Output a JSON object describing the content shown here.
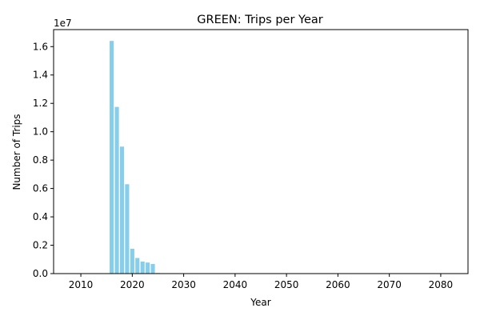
{
  "chart_data": {
    "type": "bar",
    "title": "GREEN: Trips per Year",
    "xlabel": "Year",
    "ylabel": "Number of Trips",
    "y_offset_label": "1e7",
    "bar_color": "#87ceeb",
    "x": [
      2016,
      2017,
      2018,
      2019,
      2020,
      2021,
      2022,
      2023,
      2024,
      2025
    ],
    "values": [
      16400000,
      11750000,
      8950000,
      6300000,
      1750000,
      1100000,
      850000,
      780000,
      680000,
      40000
    ],
    "xlim": [
      2004.7,
      2085.3
    ],
    "ylim": [
      0,
      17200000
    ],
    "x_ticks": [
      2010,
      2020,
      2030,
      2040,
      2050,
      2060,
      2070,
      2080
    ],
    "x_tick_labels": [
      "2010",
      "2020",
      "2030",
      "2040",
      "2050",
      "2060",
      "2070",
      "2080"
    ],
    "y_ticks": [
      0,
      2000000,
      4000000,
      6000000,
      8000000,
      10000000,
      12000000,
      14000000,
      16000000
    ],
    "y_tick_labels": [
      "0.0",
      "0.2",
      "0.4",
      "0.6",
      "0.8",
      "1.0",
      "1.2",
      "1.4",
      "1.6"
    ],
    "grid": false,
    "legend": "none"
  }
}
